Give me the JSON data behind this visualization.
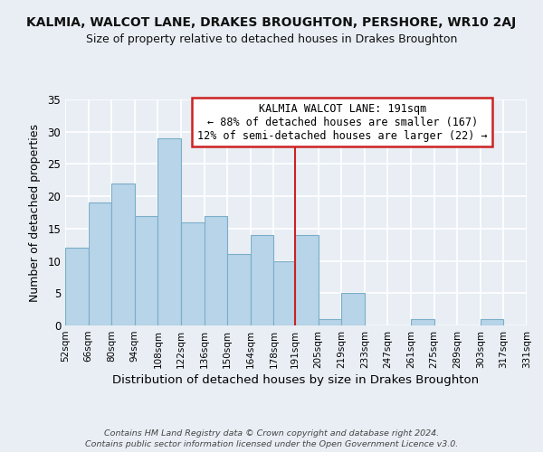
{
  "title": "KALMIA, WALCOT LANE, DRAKES BROUGHTON, PERSHORE, WR10 2AJ",
  "subtitle": "Size of property relative to detached houses in Drakes Broughton",
  "xlabel": "Distribution of detached houses by size in Drakes Broughton",
  "ylabel": "Number of detached properties",
  "footer_line1": "Contains HM Land Registry data © Crown copyright and database right 2024.",
  "footer_line2": "Contains public sector information licensed under the Open Government Licence v3.0.",
  "annotation_title": "KALMIA WALCOT LANE: 191sqm",
  "annotation_line2": "← 88% of detached houses are smaller (167)",
  "annotation_line3": "12% of semi-detached houses are larger (22) →",
  "bar_color": "#b8d4e8",
  "bar_edge_color": "#7aaec8",
  "reference_line_color": "#cc2222",
  "reference_line_x": 191,
  "bins": [
    52,
    66,
    80,
    94,
    108,
    122,
    136,
    150,
    164,
    178,
    191,
    205,
    219,
    233,
    247,
    261,
    275,
    289,
    303,
    317,
    331
  ],
  "bin_labels": [
    "52sqm",
    "66sqm",
    "80sqm",
    "94sqm",
    "108sqm",
    "122sqm",
    "136sqm",
    "150sqm",
    "164sqm",
    "178sqm",
    "191sqm",
    "205sqm",
    "219sqm",
    "233sqm",
    "247sqm",
    "261sqm",
    "275sqm",
    "289sqm",
    "303sqm",
    "317sqm",
    "331sqm"
  ],
  "counts": [
    12,
    19,
    22,
    17,
    29,
    16,
    17,
    11,
    14,
    10,
    14,
    1,
    5,
    0,
    0,
    1,
    0,
    0,
    1,
    0
  ],
  "ylim": [
    0,
    35
  ],
  "yticks": [
    0,
    5,
    10,
    15,
    20,
    25,
    30,
    35
  ],
  "background_color": "#e8eef4",
  "plot_bg_color": "#e8eef4",
  "grid_color": "#ffffff",
  "title_fontsize": 10,
  "subtitle_fontsize": 9,
  "annotation_fontsize": 8.5
}
